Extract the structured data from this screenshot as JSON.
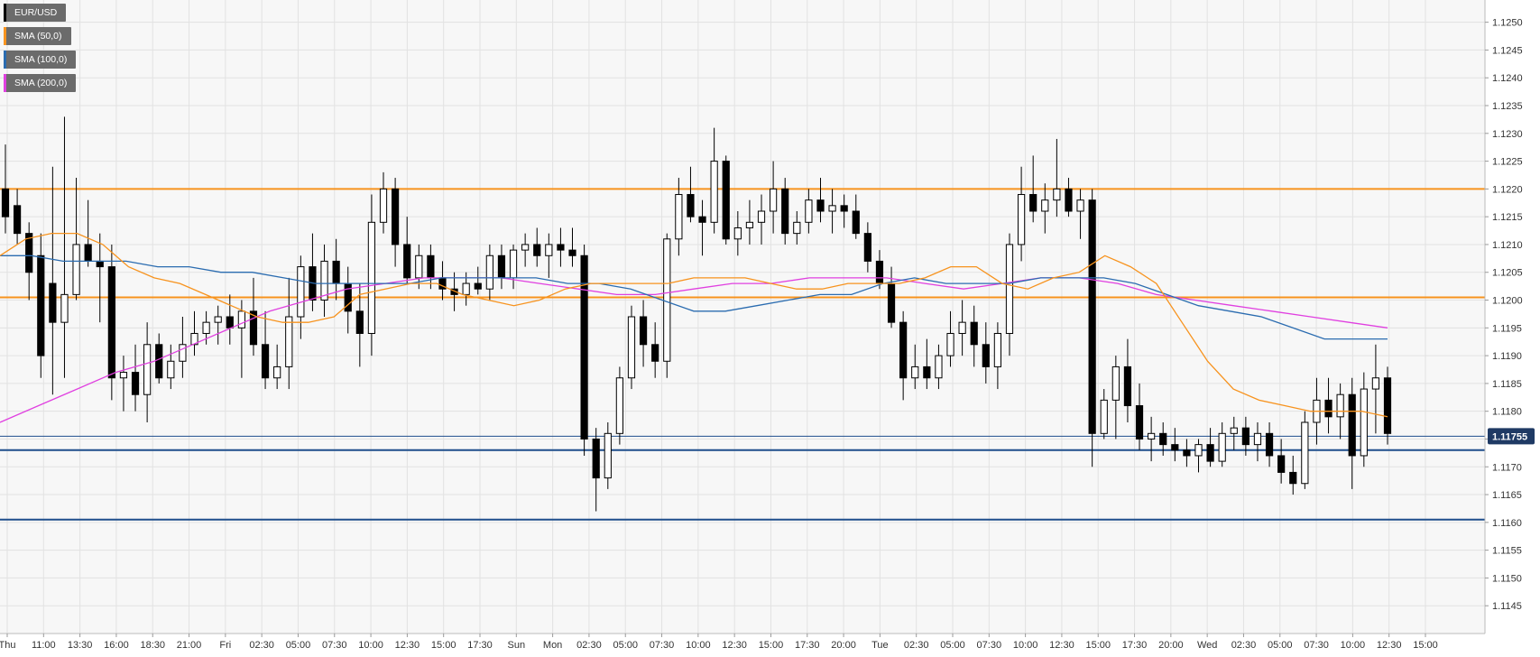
{
  "chart_data": {
    "type": "candlestick",
    "symbol": "EUR/USD",
    "legend": [
      {
        "label": "EUR/USD",
        "color": "#000000"
      },
      {
        "label": "SMA (50,0)",
        "color": "#f7931e"
      },
      {
        "label": "SMA (100,0)",
        "color": "#2b6cb0"
      },
      {
        "label": "SMA (200,0)",
        "color": "#e040e0"
      }
    ],
    "ylim": [
      1.114,
      1.1254
    ],
    "y_ticks": [
      "1.1250",
      "1.1245",
      "1.1240",
      "1.1235",
      "1.1230",
      "1.1225",
      "1.1220",
      "1.1215",
      "1.1210",
      "1.1205",
      "1.1200",
      "1.1195",
      "1.1190",
      "1.1185",
      "1.1180",
      "1.1175",
      "1.1170",
      "1.1165",
      "1.1160",
      "1.1155",
      "1.1150",
      "1.1145"
    ],
    "x_ticks": [
      "Thu",
      "11:00",
      "13:30",
      "16:00",
      "18:30",
      "21:00",
      "Fri",
      "02:30",
      "05:00",
      "07:30",
      "10:00",
      "12:30",
      "15:00",
      "17:30",
      "Sun",
      "Mon",
      "02:30",
      "05:00",
      "07:30",
      "10:00",
      "12:30",
      "15:00",
      "17:30",
      "20:00",
      "Tue",
      "02:30",
      "05:00",
      "07:30",
      "10:00",
      "12:30",
      "15:00",
      "17:30",
      "20:00",
      "Wed",
      "02:30",
      "05:00",
      "07:30",
      "10:00",
      "12:30",
      "15:00"
    ],
    "current_price": "1.11755",
    "current_price_value": 1.11755,
    "horizontal_levels": [
      {
        "value": 1.122,
        "color": "#f7931e"
      },
      {
        "value": 1.12005,
        "color": "#f7931e"
      },
      {
        "value": 1.1173,
        "color": "#1f4e8c"
      },
      {
        "value": 1.11605,
        "color": "#1f4e8c"
      }
    ],
    "sma50": [
      1.1208,
      1.1211,
      1.1212,
      1.1212,
      1.121,
      1.1206,
      1.1204,
      1.1203,
      1.1201,
      1.1199,
      1.1197,
      1.1196,
      1.1196,
      1.1197,
      1.1201,
      1.1202,
      1.1203,
      1.1203,
      1.1201,
      1.12,
      1.1199,
      1.12,
      1.1202,
      1.1203,
      1.1203,
      1.1203,
      1.1203,
      1.1204,
      1.1204,
      1.1204,
      1.1203,
      1.1202,
      1.1202,
      1.1203,
      1.1203,
      1.1203,
      1.1204,
      1.1206,
      1.1206,
      1.1203,
      1.1202,
      1.1204,
      1.1205,
      1.1208,
      1.1206,
      1.1203,
      1.1196,
      1.1189,
      1.1184,
      1.1182,
      1.1181,
      1.118,
      1.118,
      1.118,
      1.1179
    ],
    "sma100": [
      1.1208,
      1.1208,
      1.1207,
      1.1207,
      1.1207,
      1.1206,
      1.1206,
      1.1205,
      1.1205,
      1.1204,
      1.1203,
      1.1203,
      1.1203,
      1.1203,
      1.1204,
      1.1204,
      1.1204,
      1.1204,
      1.1203,
      1.1203,
      1.1202,
      1.12,
      1.1198,
      1.1198,
      1.1199,
      1.12,
      1.1201,
      1.1201,
      1.1203,
      1.1204,
      1.1203,
      1.1203,
      1.1203,
      1.1204,
      1.1204,
      1.1204,
      1.1203,
      1.1201,
      1.1199,
      1.1198,
      1.1197,
      1.1195,
      1.1193,
      1.1193,
      1.1193
    ],
    "sma200": [
      1.1178,
      1.1181,
      1.1184,
      1.1187,
      1.1189,
      1.1192,
      1.1195,
      1.1198,
      1.12,
      1.1202,
      1.1203,
      1.1204,
      1.1204,
      1.1204,
      1.1203,
      1.1202,
      1.1201,
      1.1201,
      1.1202,
      1.1203,
      1.1203,
      1.1204,
      1.1204,
      1.1204,
      1.1203,
      1.1202,
      1.1203,
      1.1204,
      1.1204,
      1.1203,
      1.1201,
      1.12,
      1.1199,
      1.1198,
      1.1197,
      1.1196,
      1.1195
    ],
    "candles": [
      {
        "o": 1.122,
        "h": 1.1228,
        "l": 1.1212,
        "c": 1.1215
      },
      {
        "o": 1.1217,
        "h": 1.122,
        "l": 1.121,
        "c": 1.1212
      },
      {
        "o": 1.1212,
        "h": 1.1214,
        "l": 1.12,
        "c": 1.1205
      },
      {
        "o": 1.1208,
        "h": 1.1212,
        "l": 1.1186,
        "c": 1.119
      },
      {
        "o": 1.1203,
        "h": 1.1224,
        "l": 1.1183,
        "c": 1.1196
      },
      {
        "o": 1.1196,
        "h": 1.1233,
        "l": 1.1186,
        "c": 1.1201
      },
      {
        "o": 1.1201,
        "h": 1.1222,
        "l": 1.12,
        "c": 1.121
      },
      {
        "o": 1.121,
        "h": 1.1218,
        "l": 1.1206,
        "c": 1.1207
      },
      {
        "o": 1.1207,
        "h": 1.1212,
        "l": 1.1196,
        "c": 1.1206
      },
      {
        "o": 1.1206,
        "h": 1.121,
        "l": 1.1182,
        "c": 1.1186
      },
      {
        "o": 1.1186,
        "h": 1.119,
        "l": 1.118,
        "c": 1.1187
      },
      {
        "o": 1.1187,
        "h": 1.1192,
        "l": 1.118,
        "c": 1.1183
      },
      {
        "o": 1.1183,
        "h": 1.1196,
        "l": 1.1178,
        "c": 1.1192
      },
      {
        "o": 1.1192,
        "h": 1.1194,
        "l": 1.1185,
        "c": 1.1186
      },
      {
        "o": 1.1186,
        "h": 1.1192,
        "l": 1.1184,
        "c": 1.1189
      },
      {
        "o": 1.1189,
        "h": 1.1197,
        "l": 1.1186,
        "c": 1.1192
      },
      {
        "o": 1.1192,
        "h": 1.1198,
        "l": 1.119,
        "c": 1.1194
      },
      {
        "o": 1.1194,
        "h": 1.1198,
        "l": 1.1192,
        "c": 1.1196
      },
      {
        "o": 1.1196,
        "h": 1.1199,
        "l": 1.1192,
        "c": 1.1197
      },
      {
        "o": 1.1197,
        "h": 1.1201,
        "l": 1.1192,
        "c": 1.1195
      },
      {
        "o": 1.1195,
        "h": 1.12,
        "l": 1.1186,
        "c": 1.1198
      },
      {
        "o": 1.1198,
        "h": 1.1204,
        "l": 1.119,
        "c": 1.1192
      },
      {
        "o": 1.1192,
        "h": 1.1198,
        "l": 1.1184,
        "c": 1.1186
      },
      {
        "o": 1.1186,
        "h": 1.1192,
        "l": 1.1184,
        "c": 1.1188
      },
      {
        "o": 1.1188,
        "h": 1.1204,
        "l": 1.1184,
        "c": 1.1197
      },
      {
        "o": 1.1197,
        "h": 1.1208,
        "l": 1.1193,
        "c": 1.1206
      },
      {
        "o": 1.1206,
        "h": 1.1212,
        "l": 1.1198,
        "c": 1.12
      },
      {
        "o": 1.12,
        "h": 1.121,
        "l": 1.1197,
        "c": 1.1207
      },
      {
        "o": 1.1207,
        "h": 1.1211,
        "l": 1.12,
        "c": 1.1203
      },
      {
        "o": 1.1203,
        "h": 1.1206,
        "l": 1.1194,
        "c": 1.1198
      },
      {
        "o": 1.1198,
        "h": 1.1203,
        "l": 1.1188,
        "c": 1.1194
      },
      {
        "o": 1.1194,
        "h": 1.1219,
        "l": 1.119,
        "c": 1.1214
      },
      {
        "o": 1.1214,
        "h": 1.1223,
        "l": 1.1212,
        "c": 1.122
      },
      {
        "o": 1.122,
        "h": 1.1222,
        "l": 1.1206,
        "c": 1.121
      },
      {
        "o": 1.121,
        "h": 1.1215,
        "l": 1.1203,
        "c": 1.1204
      },
      {
        "o": 1.1204,
        "h": 1.121,
        "l": 1.1202,
        "c": 1.1208
      },
      {
        "o": 1.1208,
        "h": 1.121,
        "l": 1.1202,
        "c": 1.1204
      },
      {
        "o": 1.1204,
        "h": 1.1207,
        "l": 1.12,
        "c": 1.1202
      },
      {
        "o": 1.1202,
        "h": 1.1205,
        "l": 1.1198,
        "c": 1.1201
      },
      {
        "o": 1.1201,
        "h": 1.1205,
        "l": 1.1199,
        "c": 1.1203
      },
      {
        "o": 1.1203,
        "h": 1.1206,
        "l": 1.1201,
        "c": 1.1202
      },
      {
        "o": 1.1202,
        "h": 1.121,
        "l": 1.12,
        "c": 1.1208
      },
      {
        "o": 1.1208,
        "h": 1.121,
        "l": 1.1202,
        "c": 1.1204
      },
      {
        "o": 1.1204,
        "h": 1.121,
        "l": 1.1202,
        "c": 1.1209
      },
      {
        "o": 1.1209,
        "h": 1.1212,
        "l": 1.1206,
        "c": 1.121
      },
      {
        "o": 1.121,
        "h": 1.1213,
        "l": 1.1206,
        "c": 1.1208
      },
      {
        "o": 1.1208,
        "h": 1.1212,
        "l": 1.1204,
        "c": 1.121
      },
      {
        "o": 1.121,
        "h": 1.1213,
        "l": 1.1206,
        "c": 1.1209
      },
      {
        "o": 1.1209,
        "h": 1.1213,
        "l": 1.1206,
        "c": 1.1208
      },
      {
        "o": 1.1208,
        "h": 1.121,
        "l": 1.1172,
        "c": 1.1175
      },
      {
        "o": 1.1175,
        "h": 1.1177,
        "l": 1.1162,
        "c": 1.1168
      },
      {
        "o": 1.1168,
        "h": 1.1178,
        "l": 1.1166,
        "c": 1.1176
      },
      {
        "o": 1.1176,
        "h": 1.1188,
        "l": 1.1174,
        "c": 1.1186
      },
      {
        "o": 1.1186,
        "h": 1.1199,
        "l": 1.1184,
        "c": 1.1197
      },
      {
        "o": 1.1197,
        "h": 1.12,
        "l": 1.1188,
        "c": 1.1192
      },
      {
        "o": 1.1192,
        "h": 1.1196,
        "l": 1.1186,
        "c": 1.1189
      },
      {
        "o": 1.1189,
        "h": 1.1212,
        "l": 1.1186,
        "c": 1.1211
      },
      {
        "o": 1.1211,
        "h": 1.1222,
        "l": 1.1208,
        "c": 1.1219
      },
      {
        "o": 1.1219,
        "h": 1.1224,
        "l": 1.1214,
        "c": 1.1215
      },
      {
        "o": 1.1215,
        "h": 1.1218,
        "l": 1.1208,
        "c": 1.1214
      },
      {
        "o": 1.1214,
        "h": 1.1231,
        "l": 1.1212,
        "c": 1.1225
      },
      {
        "o": 1.1225,
        "h": 1.1226,
        "l": 1.121,
        "c": 1.1211
      },
      {
        "o": 1.1211,
        "h": 1.1216,
        "l": 1.1208,
        "c": 1.1213
      },
      {
        "o": 1.1213,
        "h": 1.1218,
        "l": 1.121,
        "c": 1.1214
      },
      {
        "o": 1.1214,
        "h": 1.1219,
        "l": 1.121,
        "c": 1.1216
      },
      {
        "o": 1.1216,
        "h": 1.1225,
        "l": 1.1212,
        "c": 1.122
      },
      {
        "o": 1.122,
        "h": 1.1222,
        "l": 1.121,
        "c": 1.1212
      },
      {
        "o": 1.1212,
        "h": 1.1216,
        "l": 1.121,
        "c": 1.1214
      },
      {
        "o": 1.1214,
        "h": 1.122,
        "l": 1.1212,
        "c": 1.1218
      },
      {
        "o": 1.1218,
        "h": 1.1222,
        "l": 1.1214,
        "c": 1.1216
      },
      {
        "o": 1.1216,
        "h": 1.122,
        "l": 1.1212,
        "c": 1.1217
      },
      {
        "o": 1.1217,
        "h": 1.1219,
        "l": 1.1213,
        "c": 1.1216
      },
      {
        "o": 1.1216,
        "h": 1.1219,
        "l": 1.1211,
        "c": 1.1212
      },
      {
        "o": 1.1212,
        "h": 1.1214,
        "l": 1.1205,
        "c": 1.1207
      },
      {
        "o": 1.1207,
        "h": 1.1209,
        "l": 1.1202,
        "c": 1.1203
      },
      {
        "o": 1.1203,
        "h": 1.1206,
        "l": 1.1195,
        "c": 1.1196
      },
      {
        "o": 1.1196,
        "h": 1.1198,
        "l": 1.1182,
        "c": 1.1186
      },
      {
        "o": 1.1186,
        "h": 1.1192,
        "l": 1.1184,
        "c": 1.1188
      },
      {
        "o": 1.1188,
        "h": 1.1193,
        "l": 1.1184,
        "c": 1.1186
      },
      {
        "o": 1.1186,
        "h": 1.1192,
        "l": 1.1184,
        "c": 1.119
      },
      {
        "o": 1.119,
        "h": 1.1198,
        "l": 1.1188,
        "c": 1.1194
      },
      {
        "o": 1.1194,
        "h": 1.12,
        "l": 1.119,
        "c": 1.1196
      },
      {
        "o": 1.1196,
        "h": 1.1199,
        "l": 1.1188,
        "c": 1.1192
      },
      {
        "o": 1.1192,
        "h": 1.1196,
        "l": 1.1185,
        "c": 1.1188
      },
      {
        "o": 1.1188,
        "h": 1.1196,
        "l": 1.1184,
        "c": 1.1194
      },
      {
        "o": 1.1194,
        "h": 1.1212,
        "l": 1.119,
        "c": 1.121
      },
      {
        "o": 1.121,
        "h": 1.1224,
        "l": 1.1207,
        "c": 1.1219
      },
      {
        "o": 1.1219,
        "h": 1.1226,
        "l": 1.1214,
        "c": 1.1216
      },
      {
        "o": 1.1216,
        "h": 1.1221,
        "l": 1.1212,
        "c": 1.1218
      },
      {
        "o": 1.1218,
        "h": 1.1229,
        "l": 1.1215,
        "c": 1.122
      },
      {
        "o": 1.122,
        "h": 1.1222,
        "l": 1.1215,
        "c": 1.1216
      },
      {
        "o": 1.1216,
        "h": 1.122,
        "l": 1.1211,
        "c": 1.1218
      },
      {
        "o": 1.1218,
        "h": 1.122,
        "l": 1.117,
        "c": 1.1176
      },
      {
        "o": 1.1176,
        "h": 1.1184,
        "l": 1.1175,
        "c": 1.1182
      },
      {
        "o": 1.1182,
        "h": 1.119,
        "l": 1.1175,
        "c": 1.1188
      },
      {
        "o": 1.1188,
        "h": 1.1193,
        "l": 1.1178,
        "c": 1.1181
      },
      {
        "o": 1.1181,
        "h": 1.1185,
        "l": 1.1173,
        "c": 1.1175
      },
      {
        "o": 1.1175,
        "h": 1.1179,
        "l": 1.1171,
        "c": 1.1176
      },
      {
        "o": 1.1176,
        "h": 1.1178,
        "l": 1.1172,
        "c": 1.1174
      },
      {
        "o": 1.1174,
        "h": 1.1177,
        "l": 1.1171,
        "c": 1.1173
      },
      {
        "o": 1.1173,
        "h": 1.1175,
        "l": 1.117,
        "c": 1.1172
      },
      {
        "o": 1.1172,
        "h": 1.1175,
        "l": 1.1169,
        "c": 1.1174
      },
      {
        "o": 1.1174,
        "h": 1.1177,
        "l": 1.117,
        "c": 1.1171
      },
      {
        "o": 1.1171,
        "h": 1.1178,
        "l": 1.117,
        "c": 1.1176
      },
      {
        "o": 1.1176,
        "h": 1.1179,
        "l": 1.1173,
        "c": 1.1177
      },
      {
        "o": 1.1177,
        "h": 1.1179,
        "l": 1.1172,
        "c": 1.1174
      },
      {
        "o": 1.1174,
        "h": 1.1178,
        "l": 1.1171,
        "c": 1.1176
      },
      {
        "o": 1.1176,
        "h": 1.1178,
        "l": 1.117,
        "c": 1.1172
      },
      {
        "o": 1.1172,
        "h": 1.1175,
        "l": 1.1167,
        "c": 1.1169
      },
      {
        "o": 1.1169,
        "h": 1.1172,
        "l": 1.1165,
        "c": 1.1167
      },
      {
        "o": 1.1167,
        "h": 1.118,
        "l": 1.1166,
        "c": 1.1178
      },
      {
        "o": 1.1178,
        "h": 1.1186,
        "l": 1.1174,
        "c": 1.1182
      },
      {
        "o": 1.1182,
        "h": 1.1186,
        "l": 1.1176,
        "c": 1.1179
      },
      {
        "o": 1.1179,
        "h": 1.1185,
        "l": 1.1175,
        "c": 1.1183
      },
      {
        "o": 1.1183,
        "h": 1.1186,
        "l": 1.1166,
        "c": 1.1172
      },
      {
        "o": 1.1172,
        "h": 1.1187,
        "l": 1.117,
        "c": 1.1184
      },
      {
        "o": 1.1184,
        "h": 1.1192,
        "l": 1.1176,
        "c": 1.1186
      },
      {
        "o": 1.1186,
        "h": 1.1188,
        "l": 1.1174,
        "c": 1.1176
      }
    ]
  }
}
